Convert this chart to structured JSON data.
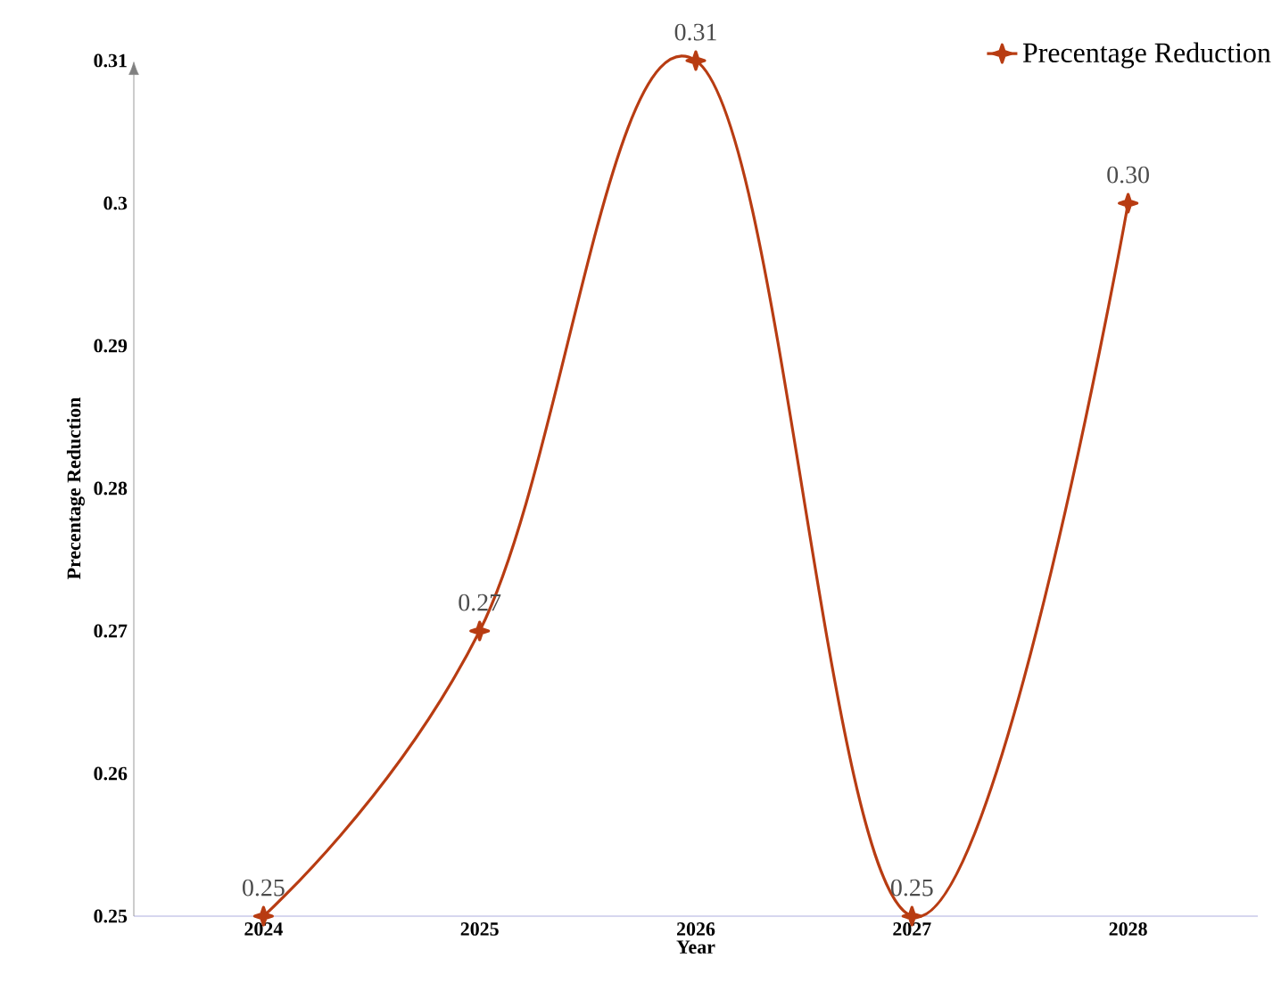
{
  "chart_data": {
    "type": "line",
    "xlabel": "Year",
    "ylabel": "Precentage Reduction",
    "categories": [
      "2024",
      "2025",
      "2026",
      "2027",
      "2028"
    ],
    "series": [
      {
        "name": "Precentage Reduction",
        "color": "#b83c12",
        "values": [
          0.25,
          0.27,
          0.31,
          0.25,
          0.3
        ],
        "value_labels": [
          "0.25",
          "0.27",
          "0.31",
          "0.25",
          "0.30"
        ]
      }
    ],
    "ylim": [
      0.25,
      0.31
    ],
    "yticks": [
      0.25,
      0.26,
      0.27,
      0.28,
      0.29,
      0.3,
      0.31
    ],
    "legend": "top right",
    "marker": "star",
    "line_style": "solid",
    "grid": false
  }
}
